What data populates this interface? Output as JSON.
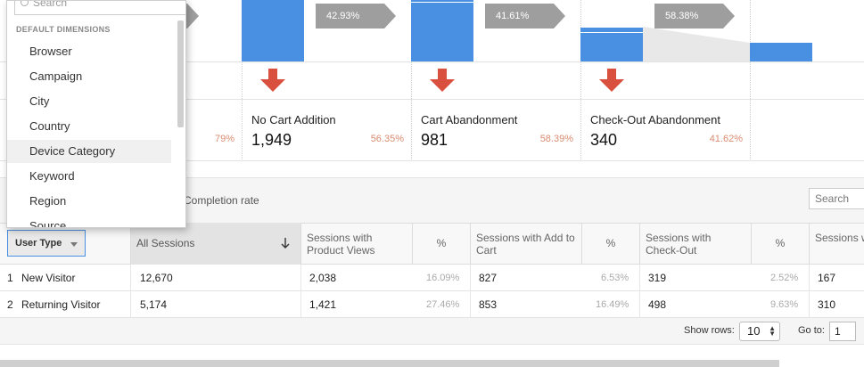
{
  "funnel": {
    "steps": [
      {
        "label": "",
        "value": "",
        "pct": "79%"
      },
      {
        "label": "No Cart Addition",
        "value": "1,949",
        "pct": "56.35%"
      },
      {
        "label": "Cart Abandonment",
        "value": "981",
        "pct": "58.39%"
      },
      {
        "label": "Check-Out Abandonment",
        "value": "340",
        "pct": "41.62%"
      }
    ],
    "transitions": [
      "42.93%",
      "41.61%",
      "58.38%"
    ],
    "colors": {
      "bar": "#4a90e2",
      "drop_arrow": "#d9503f",
      "transition": "#9e9e9e",
      "pct_text": "#d98c71"
    }
  },
  "toolbar": {
    "completion_label": "Completion rate",
    "search_placeholder": "Search"
  },
  "table": {
    "dimension_button": "User Type",
    "headers": [
      "All Sessions",
      "Sessions with Product Views",
      "%",
      "Sessions with Add to Cart",
      "%",
      "Sessions with Check-Out",
      "%",
      "Sessions w Transacti"
    ],
    "rows": [
      {
        "index": "1",
        "name": "New Visitor",
        "all": "12,670",
        "views": "2,038",
        "views_pct": "16.09%",
        "cart": "827",
        "cart_pct": "6.53%",
        "checkout": "319",
        "checkout_pct": "2.52%",
        "trans": "167"
      },
      {
        "index": "2",
        "name": "Returning Visitor",
        "all": "5,174",
        "views": "1,421",
        "views_pct": "27.46%",
        "cart": "853",
        "cart_pct": "16.49%",
        "checkout": "498",
        "checkout_pct": "9.63%",
        "trans": "310"
      }
    ]
  },
  "pager": {
    "show_rows_label": "Show rows:",
    "rows_value": "10",
    "goto_label": "Go to:",
    "goto_value": "1"
  },
  "menu": {
    "search_placeholder": "Search",
    "section_title": "DEFAULT DIMENSIONS",
    "items": [
      "Browser",
      "Campaign",
      "City",
      "Country",
      "Device Category",
      "Keyword",
      "Region",
      "Source"
    ],
    "highlighted": "Device Category"
  }
}
